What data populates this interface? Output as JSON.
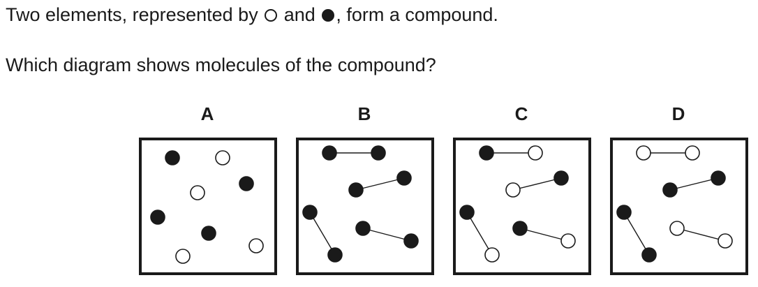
{
  "question": {
    "intro_before": "Two elements, represented by",
    "intro_middle": "and",
    "intro_after": ", form a compound.",
    "prompt": "Which diagram shows molecules of the compound?"
  },
  "options": [
    {
      "label": "A",
      "atoms": [
        {
          "color": "black"
        },
        {
          "color": "white"
        },
        {
          "color": "black"
        },
        {
          "color": "white"
        },
        {
          "color": "black"
        },
        {
          "color": "black"
        },
        {
          "color": "white"
        },
        {
          "color": "white"
        }
      ],
      "molecules": []
    },
    {
      "label": "B",
      "atoms": [],
      "molecules": [
        {
          "atoms": [
            "black",
            "black"
          ]
        },
        {
          "atoms": [
            "black",
            "black"
          ]
        },
        {
          "atoms": [
            "black",
            "black"
          ]
        },
        {
          "atoms": [
            "black",
            "black"
          ]
        }
      ]
    },
    {
      "label": "C",
      "atoms": [],
      "molecules": [
        {
          "atoms": [
            "black",
            "white"
          ]
        },
        {
          "atoms": [
            "white",
            "black"
          ]
        },
        {
          "atoms": [
            "black",
            "white"
          ]
        },
        {
          "atoms": [
            "black",
            "white"
          ]
        }
      ]
    },
    {
      "label": "D",
      "atoms": [],
      "molecules": [
        {
          "atoms": [
            "white",
            "white"
          ]
        },
        {
          "atoms": [
            "black",
            "black"
          ]
        },
        {
          "atoms": [
            "black",
            "black"
          ]
        },
        {
          "atoms": [
            "white",
            "white"
          ]
        }
      ]
    }
  ],
  "colors": {
    "ink": "#1a1a1a",
    "paper": "#ffffff"
  }
}
